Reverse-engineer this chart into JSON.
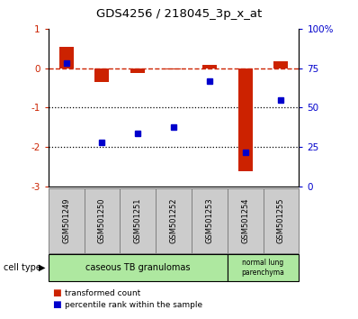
{
  "title": "GDS4256 / 218045_3p_x_at",
  "categories": [
    "GSM501249",
    "GSM501250",
    "GSM501251",
    "GSM501252",
    "GSM501253",
    "GSM501254",
    "GSM501255"
  ],
  "red_values": [
    0.55,
    -0.35,
    -0.12,
    -0.02,
    0.08,
    -2.6,
    0.18
  ],
  "blue_values": [
    78,
    28,
    34,
    38,
    67,
    22,
    55
  ],
  "ylim_left": [
    -3,
    1
  ],
  "ylim_right": [
    0,
    100
  ],
  "yticks_left": [
    -3,
    -2,
    -1,
    0,
    1
  ],
  "yticks_right": [
    0,
    25,
    50,
    75,
    100
  ],
  "ytick_labels_right": [
    "0",
    "25",
    "50",
    "75",
    "100%"
  ],
  "dotted_lines": [
    -1,
    -2
  ],
  "group1_span": 5,
  "group2_span": 2,
  "group1_label": "caseous TB granulomas",
  "group2_label": "normal lung\nparenchyma",
  "legend_red": "transformed count",
  "legend_blue": "percentile rank within the sample",
  "red_color": "#cc2200",
  "blue_color": "#0000cc",
  "bar_width": 0.4,
  "cell_type_label": "cell type",
  "sample_box_color": "#cccccc",
  "green_fill": "#aee8a0"
}
